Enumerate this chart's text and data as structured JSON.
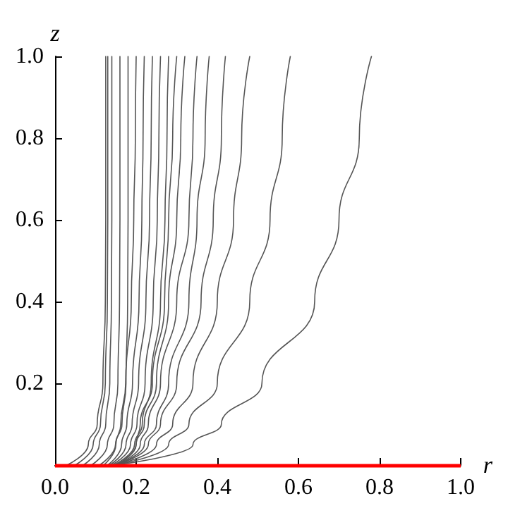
{
  "chart_data": {
    "type": "line",
    "xlabel": "r",
    "ylabel": "z",
    "xlim": [
      0,
      1
    ],
    "ylim": [
      0,
      1
    ],
    "xticks": [
      {
        "value": 0,
        "label": "0.0"
      },
      {
        "value": 0.2,
        "label": "0.2"
      },
      {
        "value": 0.4,
        "label": "0.4"
      },
      {
        "value": 0.6,
        "label": "0.6"
      },
      {
        "value": 0.8,
        "label": "0.8"
      },
      {
        "value": 1,
        "label": "1.0"
      }
    ],
    "yticks": [
      {
        "value": 0,
        "label": null
      },
      {
        "value": 0.2,
        "label": "0.2"
      },
      {
        "value": 0.4,
        "label": "0.4"
      },
      {
        "value": 0.6,
        "label": "0.6"
      },
      {
        "value": 0.8,
        "label": "0.8"
      },
      {
        "value": 1,
        "label": "1.0"
      }
    ],
    "grid": false,
    "marker": "none",
    "line_style": "solid",
    "ref_lines": [
      {
        "axis": "y",
        "value": 0,
        "color": "#ff0000"
      }
    ],
    "series": [
      {
        "color": "#555555",
        "x": [
          0.15,
          0.34,
          0.41,
          0.51,
          0.64,
          0.7,
          0.75,
          0.78
        ],
        "values": [
          0,
          0.05,
          0.1,
          0.2,
          0.4,
          0.6,
          0.8,
          1
        ]
      },
      {
        "color": "#555555",
        "x": [
          0.15,
          0.28,
          0.33,
          0.4,
          0.48,
          0.53,
          0.56,
          0.58
        ],
        "values": [
          0,
          0.05,
          0.1,
          0.2,
          0.4,
          0.6,
          0.8,
          1
        ]
      },
      {
        "color": "#555555",
        "x": [
          0.15,
          0.25,
          0.29,
          0.34,
          0.4,
          0.44,
          0.46,
          0.48
        ],
        "values": [
          0,
          0.05,
          0.1,
          0.2,
          0.4,
          0.6,
          0.8,
          1
        ]
      },
      {
        "color": "#555555",
        "x": [
          0.15,
          0.23,
          0.26,
          0.3,
          0.36,
          0.39,
          0.41,
          0.42
        ],
        "values": [
          0,
          0.05,
          0.1,
          0.2,
          0.4,
          0.6,
          0.8,
          1
        ]
      },
      {
        "color": "#555555",
        "x": [
          0.15,
          0.22,
          0.25,
          0.28,
          0.33,
          0.35,
          0.37,
          0.38
        ],
        "values": [
          0,
          0.05,
          0.1,
          0.2,
          0.4,
          0.6,
          0.8,
          1
        ]
      },
      {
        "color": "#555555",
        "x": [
          0.15,
          0.21,
          0.23,
          0.26,
          0.3,
          0.33,
          0.34,
          0.35
        ],
        "values": [
          0,
          0.05,
          0.1,
          0.2,
          0.4,
          0.6,
          0.8,
          1
        ]
      },
      {
        "color": "#555555",
        "x": [
          0.15,
          0.2,
          0.22,
          0.25,
          0.28,
          0.3,
          0.31,
          0.32
        ],
        "values": [
          0,
          0.05,
          0.1,
          0.2,
          0.4,
          0.6,
          0.8,
          1
        ]
      },
      {
        "color": "#555555",
        "x": [
          0.15,
          0.2,
          0.21,
          0.24,
          0.27,
          0.28,
          0.29,
          0.3
        ],
        "values": [
          0,
          0.05,
          0.1,
          0.2,
          0.4,
          0.6,
          0.8,
          1
        ]
      },
      {
        "color": "#555555",
        "x": [
          0.145,
          0.196,
          0.215,
          0.237,
          0.26,
          0.271,
          0.276,
          0.28
        ],
        "values": [
          0,
          0.05,
          0.1,
          0.2,
          0.4,
          0.6,
          0.8,
          1
        ]
      },
      {
        "color": "#555555",
        "x": [
          0.14,
          0.186,
          0.202,
          0.222,
          0.242,
          0.252,
          0.256,
          0.26
        ],
        "values": [
          0,
          0.05,
          0.1,
          0.2,
          0.4,
          0.6,
          0.8,
          1
        ]
      },
      {
        "color": "#555555",
        "x": [
          0.135,
          0.175,
          0.19,
          0.206,
          0.224,
          0.233,
          0.237,
          0.24
        ],
        "values": [
          0,
          0.05,
          0.1,
          0.2,
          0.4,
          0.6,
          0.8,
          1
        ]
      },
      {
        "color": "#555555",
        "x": [
          0.13,
          0.164,
          0.177,
          0.191,
          0.207,
          0.214,
          0.217,
          0.22
        ],
        "values": [
          0,
          0.05,
          0.1,
          0.2,
          0.4,
          0.6,
          0.8,
          1
        ]
      },
      {
        "color": "#555555",
        "x": [
          0.12,
          0.15,
          0.162,
          0.174,
          0.188,
          0.194,
          0.198,
          0.2
        ],
        "values": [
          0,
          0.05,
          0.1,
          0.2,
          0.4,
          0.6,
          0.8,
          1
        ]
      },
      {
        "color": "#555555",
        "x": [
          0.11,
          0.149,
          0.165,
          0.175,
          0.179,
          0.18,
          0.18,
          0.18
        ],
        "values": [
          0,
          0.05,
          0.1,
          0.2,
          0.4,
          0.6,
          0.8,
          1
        ]
      },
      {
        "color": "#555555",
        "x": [
          0.09,
          0.129,
          0.145,
          0.155,
          0.159,
          0.16,
          0.16,
          0.16
        ],
        "values": [
          0,
          0.05,
          0.1,
          0.2,
          0.4,
          0.6,
          0.8,
          1
        ]
      },
      {
        "color": "#555555",
        "x": [
          0.07,
          0.109,
          0.125,
          0.135,
          0.139,
          0.14,
          0.14,
          0.14
        ],
        "values": [
          0,
          0.05,
          0.1,
          0.2,
          0.4,
          0.6,
          0.8,
          1
        ]
      },
      {
        "color": "#555555",
        "x": [
          0.05,
          0.094,
          0.112,
          0.124,
          0.129,
          0.13,
          0.13,
          0.13
        ],
        "values": [
          0,
          0.05,
          0.1,
          0.2,
          0.4,
          0.6,
          0.8,
          1
        ]
      },
      {
        "color": "#555555",
        "x": [
          0.03,
          0.082,
          0.104,
          0.118,
          0.124,
          0.125,
          0.125,
          0.125
        ],
        "values": [
          0,
          0.05,
          0.1,
          0.2,
          0.4,
          0.6,
          0.8,
          1
        ]
      }
    ]
  }
}
